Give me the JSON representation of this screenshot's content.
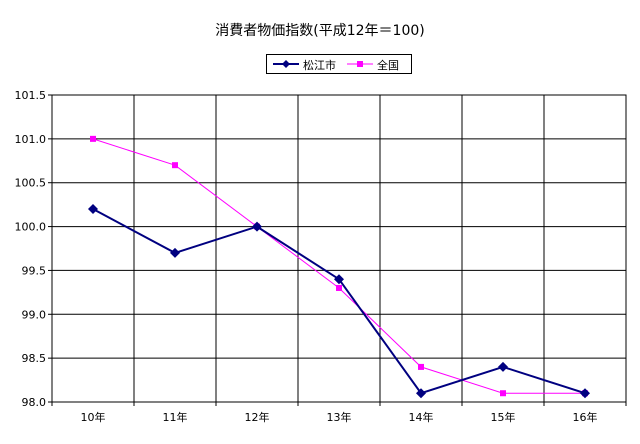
{
  "chart_data": {
    "type": "line",
    "title": "消費者物価指数(平成12年＝100)",
    "xlabel": "",
    "ylabel": "",
    "categories": [
      "10年",
      "11年",
      "12年",
      "13年",
      "14年",
      "15年",
      "16年"
    ],
    "ylim": [
      98.0,
      101.5
    ],
    "yticks": [
      "98.0",
      "98.5",
      "99.0",
      "99.5",
      "100.0",
      "100.5",
      "101.0",
      "101.5"
    ],
    "grid": true,
    "legend_position": "top",
    "series": [
      {
        "name": "松江市",
        "color": "#000080",
        "marker": "diamond",
        "values": [
          100.2,
          99.7,
          100.0,
          99.4,
          98.1,
          98.4,
          98.1
        ]
      },
      {
        "name": "全国",
        "color": "#ff00ff",
        "marker": "square",
        "values": [
          101.0,
          100.7,
          100.0,
          99.3,
          98.4,
          98.1,
          98.1
        ]
      }
    ]
  }
}
